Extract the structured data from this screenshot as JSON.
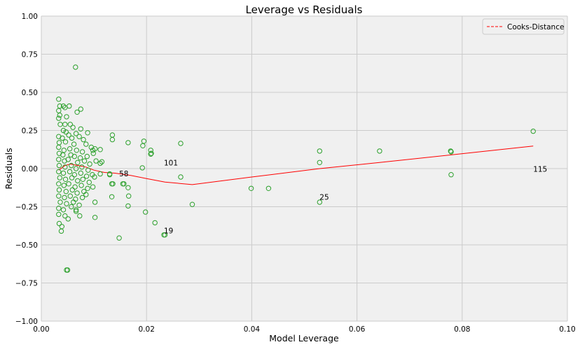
{
  "chart_data": {
    "type": "scatter",
    "title": "Leverage vs Residuals",
    "xlabel": "Model Leverage",
    "ylabel": "Residuals",
    "xlim": [
      0.0,
      0.1
    ],
    "ylim": [
      -1.0,
      1.0
    ],
    "x_ticks": [
      0.0,
      0.02,
      0.04,
      0.06,
      0.08,
      0.1
    ],
    "x_tick_labels": [
      "0.00",
      "0.02",
      "0.04",
      "0.06",
      "0.08",
      "0.10"
    ],
    "y_ticks": [
      -1.0,
      -0.75,
      -0.5,
      -0.25,
      0.0,
      0.25,
      0.5,
      0.75,
      1.0
    ],
    "y_tick_labels": [
      "−1.00",
      "−0.75",
      "−0.50",
      "−0.25",
      "0.00",
      "0.25",
      "0.50",
      "0.75",
      "1.00"
    ],
    "grid": true,
    "legend_position": "top-right",
    "colors": {
      "background": "#f0f0f0",
      "grid": "#cbcbcb",
      "points": "#2ca02c",
      "cooks_line": "#ff0000"
    },
    "series": [
      {
        "name": "",
        "kind": "scatter",
        "points": [
          [
            0.0065,
            0.665
          ],
          [
            0.0033,
            0.455
          ],
          [
            0.0035,
            0.41
          ],
          [
            0.0042,
            0.41
          ],
          [
            0.0045,
            0.4
          ],
          [
            0.0053,
            0.41
          ],
          [
            0.0033,
            0.38
          ],
          [
            0.0035,
            0.35
          ],
          [
            0.0033,
            0.33
          ],
          [
            0.0075,
            0.39
          ],
          [
            0.0068,
            0.37
          ],
          [
            0.0048,
            0.34
          ],
          [
            0.0055,
            0.29
          ],
          [
            0.0045,
            0.29
          ],
          [
            0.0036,
            0.29
          ],
          [
            0.006,
            0.27
          ],
          [
            0.0042,
            0.25
          ],
          [
            0.0047,
            0.24
          ],
          [
            0.0052,
            0.22
          ],
          [
            0.0066,
            0.23
          ],
          [
            0.0075,
            0.26
          ],
          [
            0.0088,
            0.235
          ],
          [
            0.0033,
            0.21
          ],
          [
            0.004,
            0.2
          ],
          [
            0.0058,
            0.2
          ],
          [
            0.0072,
            0.21
          ],
          [
            0.008,
            0.19
          ],
          [
            0.0034,
            0.17
          ],
          [
            0.0046,
            0.175
          ],
          [
            0.0062,
            0.16
          ],
          [
            0.0085,
            0.16
          ],
          [
            0.0095,
            0.14
          ],
          [
            0.0033,
            0.14
          ],
          [
            0.0043,
            0.12
          ],
          [
            0.0054,
            0.13
          ],
          [
            0.0067,
            0.12
          ],
          [
            0.0078,
            0.11
          ],
          [
            0.0098,
            0.12
          ],
          [
            0.0102,
            0.13
          ],
          [
            0.0112,
            0.125
          ],
          [
            0.0034,
            0.1
          ],
          [
            0.0041,
            0.09
          ],
          [
            0.0056,
            0.09
          ],
          [
            0.0063,
            0.08
          ],
          [
            0.0074,
            0.07
          ],
          [
            0.0087,
            0.08
          ],
          [
            0.0099,
            0.1
          ],
          [
            0.0033,
            0.06
          ],
          [
            0.0044,
            0.05
          ],
          [
            0.0051,
            0.06
          ],
          [
            0.0069,
            0.04
          ],
          [
            0.0082,
            0.05
          ],
          [
            0.0092,
            0.03
          ],
          [
            0.0104,
            0.05
          ],
          [
            0.0112,
            0.035
          ],
          [
            0.0115,
            0.045
          ],
          [
            0.0034,
            0.02
          ],
          [
            0.0045,
            0.01
          ],
          [
            0.0057,
            0.02
          ],
          [
            0.0066,
            0.0
          ],
          [
            0.0077,
            0.01
          ],
          [
            0.0089,
            -0.01
          ],
          [
            0.0033,
            -0.02
          ],
          [
            0.0042,
            -0.03
          ],
          [
            0.0054,
            -0.02
          ],
          [
            0.0063,
            -0.04
          ],
          [
            0.0075,
            -0.03
          ],
          [
            0.0086,
            -0.05
          ],
          [
            0.0097,
            -0.04
          ],
          [
            0.0101,
            -0.055
          ],
          [
            0.0112,
            -0.035
          ],
          [
            0.0035,
            -0.06
          ],
          [
            0.0046,
            -0.07
          ],
          [
            0.0058,
            -0.06
          ],
          [
            0.0069,
            -0.08
          ],
          [
            0.0079,
            -0.07
          ],
          [
            0.0091,
            -0.09
          ],
          [
            0.0033,
            -0.1
          ],
          [
            0.0043,
            -0.11
          ],
          [
            0.0052,
            -0.1
          ],
          [
            0.0064,
            -0.12
          ],
          [
            0.0076,
            -0.11
          ],
          [
            0.0088,
            -0.13
          ],
          [
            0.0098,
            -0.12
          ],
          [
            0.0034,
            -0.14
          ],
          [
            0.0047,
            -0.15
          ],
          [
            0.0059,
            -0.14
          ],
          [
            0.0068,
            -0.16
          ],
          [
            0.0081,
            -0.15
          ],
          [
            0.0033,
            -0.18
          ],
          [
            0.0044,
            -0.19
          ],
          [
            0.0055,
            -0.18
          ],
          [
            0.0065,
            -0.2
          ],
          [
            0.0078,
            -0.19
          ],
          [
            0.0036,
            -0.22
          ],
          [
            0.0048,
            -0.23
          ],
          [
            0.0061,
            -0.22
          ],
          [
            0.0072,
            -0.24
          ],
          [
            0.0085,
            -0.17
          ],
          [
            0.0033,
            -0.26
          ],
          [
            0.0042,
            -0.27
          ],
          [
            0.0057,
            -0.25
          ],
          [
            0.0066,
            -0.27
          ],
          [
            0.0033,
            -0.3
          ],
          [
            0.0045,
            -0.31
          ],
          [
            0.0051,
            -0.33
          ],
          [
            0.0073,
            -0.31
          ],
          [
            0.0034,
            -0.36
          ],
          [
            0.0039,
            -0.38
          ],
          [
            0.0038,
            -0.41
          ],
          [
            0.0066,
            -0.28
          ],
          [
            0.0102,
            -0.22
          ],
          [
            0.0102,
            -0.32
          ],
          [
            0.0048,
            -0.665
          ],
          [
            0.005,
            -0.665
          ],
          [
            0.0135,
            0.22
          ],
          [
            0.0135,
            0.19
          ],
          [
            0.013,
            -0.035
          ],
          [
            0.013,
            -0.04
          ],
          [
            0.0134,
            -0.1
          ],
          [
            0.0136,
            -0.1
          ],
          [
            0.0155,
            -0.1
          ],
          [
            0.0157,
            -0.1
          ],
          [
            0.0134,
            -0.185
          ],
          [
            0.0165,
            0.17
          ],
          [
            0.0165,
            -0.125
          ],
          [
            0.0166,
            -0.18
          ],
          [
            0.0165,
            -0.245
          ],
          [
            0.0148,
            -0.455
          ],
          [
            0.0195,
            0.18
          ],
          [
            0.0193,
            0.15
          ],
          [
            0.0192,
            0.005
          ],
          [
            0.0208,
            0.12
          ],
          [
            0.0208,
            0.095
          ],
          [
            0.0209,
            0.1
          ],
          [
            0.0198,
            -0.285
          ],
          [
            0.0216,
            -0.355
          ],
          [
            0.0233,
            -0.435
          ],
          [
            0.0235,
            -0.435
          ],
          [
            0.0265,
            0.165
          ],
          [
            0.0265,
            -0.055
          ],
          [
            0.0287,
            -0.235
          ],
          [
            0.0399,
            -0.13
          ],
          [
            0.0432,
            -0.13
          ],
          [
            0.0529,
            0.115
          ],
          [
            0.0529,
            0.04
          ],
          [
            0.0529,
            -0.22
          ],
          [
            0.0643,
            0.115
          ],
          [
            0.0778,
            0.115
          ],
          [
            0.0779,
            0.11
          ],
          [
            0.0779,
            -0.04
          ],
          [
            0.0935,
            0.245
          ]
        ]
      },
      {
        "name": "Cooks-Distance",
        "kind": "line",
        "points": [
          [
            0.0033,
            -0.01
          ],
          [
            0.0045,
            0.02
          ],
          [
            0.0055,
            0.03
          ],
          [
            0.007,
            0.02
          ],
          [
            0.0085,
            0.01
          ],
          [
            0.01,
            -0.01
          ],
          [
            0.012,
            -0.025
          ],
          [
            0.014,
            -0.03
          ],
          [
            0.017,
            -0.045
          ],
          [
            0.02,
            -0.065
          ],
          [
            0.0235,
            -0.088
          ],
          [
            0.0287,
            -0.105
          ],
          [
            0.04,
            -0.055
          ],
          [
            0.0529,
            0.0
          ],
          [
            0.0643,
            0.04
          ],
          [
            0.0779,
            0.09
          ],
          [
            0.0935,
            0.148
          ]
        ]
      }
    ],
    "annotations": [
      {
        "text": "58",
        "x": 0.0148,
        "y": -0.05
      },
      {
        "text": "101",
        "x": 0.0233,
        "y": 0.02
      },
      {
        "text": "19",
        "x": 0.0233,
        "y": -0.425
      },
      {
        "text": "25",
        "x": 0.0529,
        "y": -0.205
      },
      {
        "text": "115",
        "x": 0.0935,
        "y": -0.02
      }
    ]
  }
}
